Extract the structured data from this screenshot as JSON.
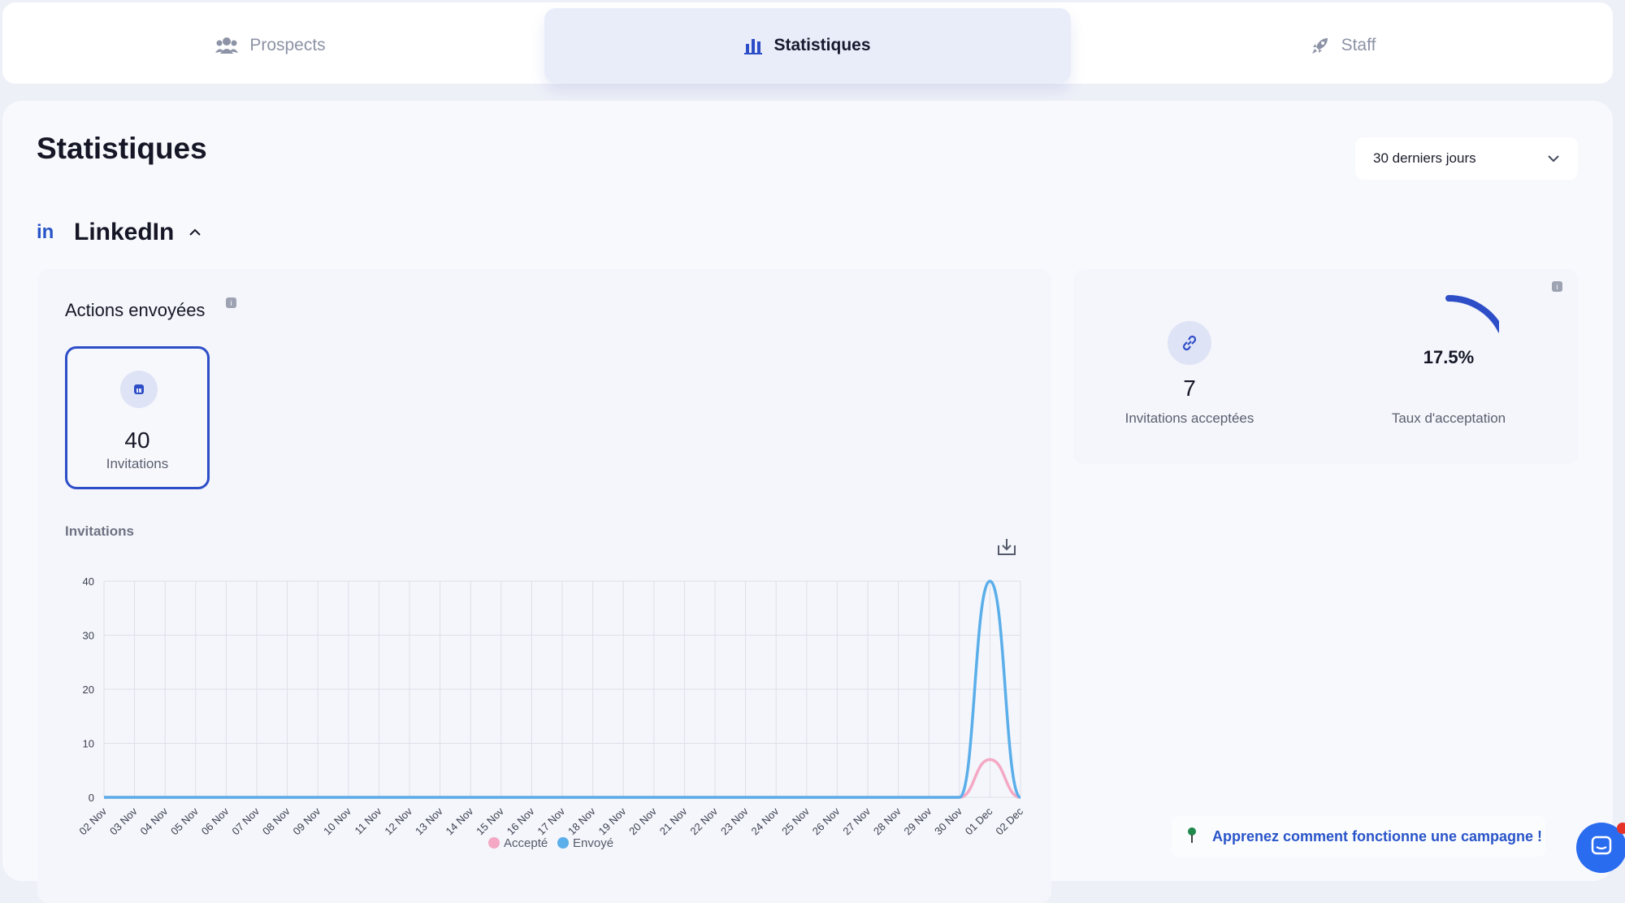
{
  "nav": {
    "tabs": [
      {
        "label": "Prospects",
        "icon": "people-icon",
        "active": false
      },
      {
        "label": "Statistiques",
        "icon": "bar-chart-icon",
        "active": true
      },
      {
        "label": "Staff",
        "icon": "rocket-icon",
        "active": false
      }
    ]
  },
  "page": {
    "title": "Statistiques",
    "period_select": {
      "value": "30 derniers jours",
      "icon": "chevron-down-icon"
    }
  },
  "linkedin": {
    "logo_text": "in",
    "title": "LinkedIn",
    "collapse_icon": "chevron-up-icon",
    "actions_card": {
      "title": "Actions envoyées",
      "info_icon": "info-icon",
      "metric": {
        "value": "40",
        "label": "Invitations",
        "icon": "linkedin-square-icon"
      },
      "chart_title": "Invitations",
      "download_icon": "download-icon"
    },
    "acceptance_card": {
      "accepted": {
        "value": "7",
        "label": "Invitations acceptées",
        "icon": "link-icon"
      },
      "rate": {
        "value": "17.5%",
        "label": "Taux d'acceptation",
        "fraction": 0.175
      },
      "info_icon": "info-icon"
    }
  },
  "help_banner": {
    "text": "Apprenez comment fonctionne une campagne !",
    "icon": "pin-icon"
  },
  "chat": {
    "icon": "chat-icon"
  },
  "colors": {
    "accent": "#2e4ec8",
    "sent_line": "#5aaeea",
    "accepted_line": "#f4a8c4"
  },
  "chart_data": {
    "type": "line",
    "title": "Invitations",
    "categories": [
      "02 Nov",
      "03 Nov",
      "04 Nov",
      "05 Nov",
      "06 Nov",
      "07 Nov",
      "08 Nov",
      "09 Nov",
      "10 Nov",
      "11 Nov",
      "12 Nov",
      "13 Nov",
      "14 Nov",
      "15 Nov",
      "16 Nov",
      "17 Nov",
      "18 Nov",
      "19 Nov",
      "20 Nov",
      "21 Nov",
      "22 Nov",
      "23 Nov",
      "24 Nov",
      "25 Nov",
      "26 Nov",
      "27 Nov",
      "28 Nov",
      "29 Nov",
      "30 Nov",
      "01 Dec",
      "02 Dec"
    ],
    "series": [
      {
        "name": "Accepté",
        "color": "#f4a8c4",
        "values": [
          0,
          0,
          0,
          0,
          0,
          0,
          0,
          0,
          0,
          0,
          0,
          0,
          0,
          0,
          0,
          0,
          0,
          0,
          0,
          0,
          0,
          0,
          0,
          0,
          0,
          0,
          0,
          0,
          0,
          7,
          0
        ]
      },
      {
        "name": "Envoyé",
        "color": "#5aaeea",
        "values": [
          0,
          0,
          0,
          0,
          0,
          0,
          0,
          0,
          0,
          0,
          0,
          0,
          0,
          0,
          0,
          0,
          0,
          0,
          0,
          0,
          0,
          0,
          0,
          0,
          0,
          0,
          0,
          0,
          0,
          40,
          0
        ]
      }
    ],
    "yticks": [
      0,
      10,
      20,
      30,
      40
    ],
    "ylim": [
      0,
      40
    ],
    "grid": true,
    "legend": "bottom"
  }
}
